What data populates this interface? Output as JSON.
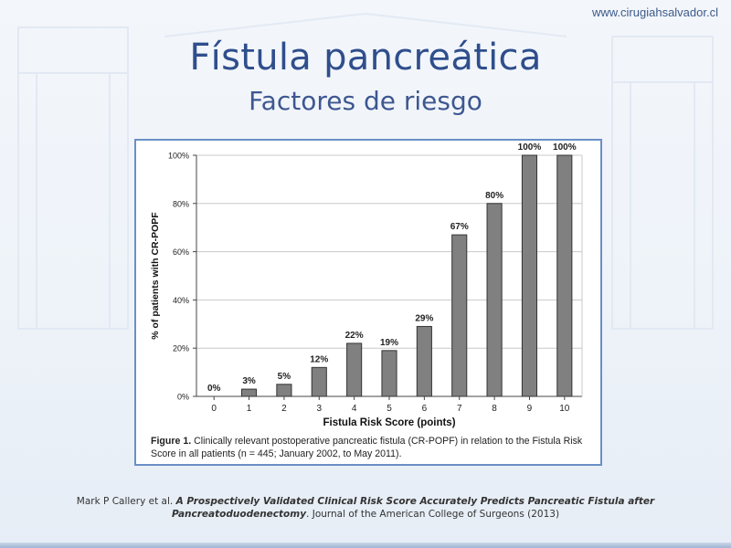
{
  "site_url": "www.cirugiahsalvador.cl",
  "title": "Fístula pancreática",
  "subtitle": "Factores de riesgo",
  "chart_data": {
    "type": "bar",
    "categories": [
      "0",
      "1",
      "2",
      "3",
      "4",
      "5",
      "6",
      "7",
      "8",
      "9",
      "10"
    ],
    "values": [
      0,
      3,
      5,
      12,
      22,
      19,
      29,
      67,
      80,
      100,
      100
    ],
    "data_labels": [
      "0%",
      "3%",
      "5%",
      "12%",
      "22%",
      "19%",
      "29%",
      "67%",
      "80%",
      "100%",
      "100%"
    ],
    "xlabel": "Fistula Risk Score  (points)",
    "ylabel": "% of patients with CR-POPF",
    "ylim": [
      0,
      100
    ],
    "yticks": [
      0,
      20,
      40,
      60,
      80,
      100
    ],
    "ytick_labels": [
      "0%",
      "20%",
      "40%",
      "60%",
      "80%",
      "100%"
    ],
    "grid": "horizontal",
    "bar_color": "#808080"
  },
  "caption": {
    "label": "Figure 1.",
    "text": "Clinically relevant postoperative pancreatic fistula (CR-POPF) in relation to the Fistula Risk Score in all patients (n = 445; January 2002, to May 2011)."
  },
  "citation": {
    "authors": "Mark P Callery et al.",
    "paper_title": "A Prospectively Validated Clinical Risk Score Accurately Predicts Pancreatic Fistula after Pancreatoduodenectomy",
    "journal": ". Journal of the American College of Surgeons (2013)"
  }
}
